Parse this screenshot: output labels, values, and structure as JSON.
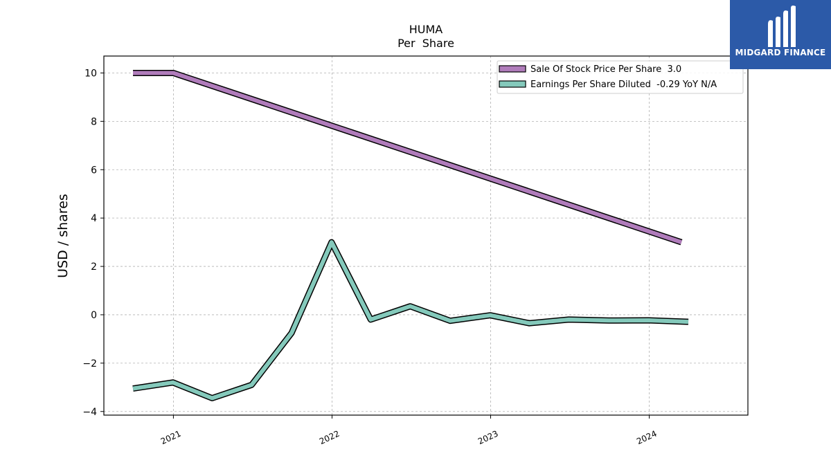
{
  "chart_data": {
    "type": "line",
    "title": "HUMA",
    "subtitle": "Per  Share",
    "xlabel": "",
    "ylabel": "USD / shares",
    "xlim": [
      "2020-07-25",
      "2024-08-15"
    ],
    "ylim": [
      -4.15,
      10.7
    ],
    "yticks": [
      -4,
      -2,
      0,
      2,
      4,
      6,
      8,
      10
    ],
    "yticklabels": [
      "−4",
      "−2",
      "0",
      "2",
      "4",
      "6",
      "8",
      "10"
    ],
    "xticks": [
      "2021-01-01",
      "2022-01-01",
      "2023-01-01",
      "2024-01-01"
    ],
    "xticklabels": [
      "2021",
      "2022",
      "2023",
      "2024"
    ],
    "grid": true,
    "legend_position": "top-right",
    "series": [
      {
        "name": "Sale Of Stock Price Per Share  3.0",
        "color": "#b07cbb",
        "points": [
          {
            "x": "2020-09-30",
            "y": 10.0
          },
          {
            "x": "2021-01-01",
            "y": 10.0
          },
          {
            "x": "2024-03-15",
            "y": 3.0
          }
        ]
      },
      {
        "name": "Earnings Per Share Diluted  -0.29 YoY N/A",
        "color": "#84c9bb",
        "points": [
          {
            "x": "2020-09-30",
            "y": -3.05
          },
          {
            "x": "2020-12-31",
            "y": -2.8
          },
          {
            "x": "2021-03-31",
            "y": -3.45
          },
          {
            "x": "2021-06-30",
            "y": -2.9
          },
          {
            "x": "2021-09-30",
            "y": -0.75
          },
          {
            "x": "2021-12-31",
            "y": 3.0
          },
          {
            "x": "2022-03-31",
            "y": -0.2
          },
          {
            "x": "2022-06-30",
            "y": 0.35
          },
          {
            "x": "2022-09-30",
            "y": -0.25
          },
          {
            "x": "2022-12-31",
            "y": -0.02
          },
          {
            "x": "2023-03-31",
            "y": -0.35
          },
          {
            "x": "2023-06-30",
            "y": -0.2
          },
          {
            "x": "2023-09-30",
            "y": -0.24
          },
          {
            "x": "2023-12-31",
            "y": -0.23
          },
          {
            "x": "2024-03-31",
            "y": -0.29
          }
        ]
      }
    ]
  },
  "logo": {
    "text": "MIDGARD FINANCE",
    "background": "#2c5aa8"
  }
}
